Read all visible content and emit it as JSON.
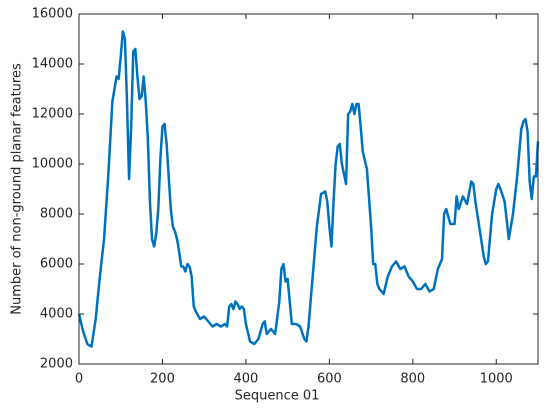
{
  "chart_data": {
    "type": "line",
    "xlabel": "Sequence 01",
    "ylabel": "Number of non-ground planar features",
    "xlim": [
      0,
      1100
    ],
    "xticks": [
      0,
      200,
      400,
      600,
      800,
      1000
    ],
    "ylim": [
      2000,
      16000
    ],
    "yticks": [
      2000,
      4000,
      6000,
      8000,
      10000,
      12000,
      14000,
      16000
    ],
    "series": [
      {
        "color": "#0072bd",
        "x": [
          0,
          10,
          20,
          30,
          40,
          50,
          60,
          70,
          80,
          90,
          95,
          100,
          105,
          110,
          115,
          120,
          125,
          130,
          135,
          140,
          145,
          150,
          155,
          160,
          165,
          170,
          175,
          180,
          185,
          190,
          195,
          200,
          205,
          210,
          215,
          220,
          225,
          230,
          235,
          240,
          245,
          250,
          255,
          260,
          265,
          270,
          275,
          280,
          290,
          300,
          310,
          320,
          330,
          340,
          350,
          355,
          360,
          365,
          370,
          375,
          380,
          385,
          390,
          395,
          400,
          410,
          420,
          430,
          440,
          445,
          450,
          460,
          470,
          480,
          485,
          490,
          495,
          500,
          505,
          510,
          520,
          530,
          540,
          545,
          550,
          560,
          570,
          580,
          590,
          595,
          600,
          605,
          610,
          615,
          620,
          625,
          630,
          640,
          645,
          650,
          655,
          660,
          665,
          670,
          675,
          680,
          690,
          700,
          705,
          710,
          715,
          720,
          730,
          740,
          750,
          760,
          770,
          780,
          790,
          800,
          810,
          820,
          830,
          840,
          850,
          860,
          870,
          875,
          880,
          890,
          900,
          905,
          910,
          920,
          930,
          940,
          945,
          950,
          960,
          970,
          975,
          980,
          990,
          1000,
          1005,
          1010,
          1020,
          1030,
          1040,
          1050,
          1060,
          1065,
          1070,
          1075,
          1080,
          1085,
          1090,
          1095,
          1100
        ],
        "values": [
          4000,
          3300,
          2800,
          2700,
          3800,
          5500,
          7000,
          9500,
          12500,
          13500,
          13400,
          14300,
          15300,
          15000,
          12500,
          9400,
          11500,
          14500,
          14600,
          13500,
          12600,
          12700,
          13500,
          12500,
          11000,
          8500,
          7000,
          6700,
          7200,
          8200,
          10200,
          11500,
          11600,
          10800,
          9500,
          8200,
          7500,
          7300,
          7000,
          6500,
          5900,
          5900,
          5700,
          6000,
          5900,
          5500,
          4300,
          4100,
          3800,
          3900,
          3700,
          3500,
          3600,
          3500,
          3600,
          3500,
          4300,
          4400,
          4200,
          4500,
          4400,
          4200,
          4300,
          4200,
          3600,
          2900,
          2800,
          3000,
          3600,
          3700,
          3200,
          3400,
          3200,
          4500,
          5800,
          6000,
          5300,
          5400,
          4500,
          3600,
          3600,
          3500,
          3000,
          2900,
          3500,
          5500,
          7500,
          8800,
          8900,
          8500,
          7500,
          6700,
          8500,
          10000,
          10700,
          10800,
          10000,
          9200,
          12000,
          12100,
          12400,
          12000,
          12400,
          12400,
          11500,
          10500,
          9800,
          7500,
          6000,
          6000,
          5200,
          5000,
          4800,
          5500,
          5900,
          6100,
          5800,
          5900,
          5500,
          5300,
          5000,
          5000,
          5200,
          4900,
          5000,
          5800,
          6200,
          8000,
          8200,
          7600,
          7600,
          8700,
          8200,
          8700,
          8400,
          9300,
          9200,
          8500,
          7400,
          6300,
          6000,
          6100,
          8000,
          9000,
          9200,
          9000,
          8500,
          7000,
          8000,
          9500,
          11400,
          11700,
          11800,
          11300,
          9300,
          8600,
          9500,
          9500,
          10900
        ]
      }
    ]
  }
}
